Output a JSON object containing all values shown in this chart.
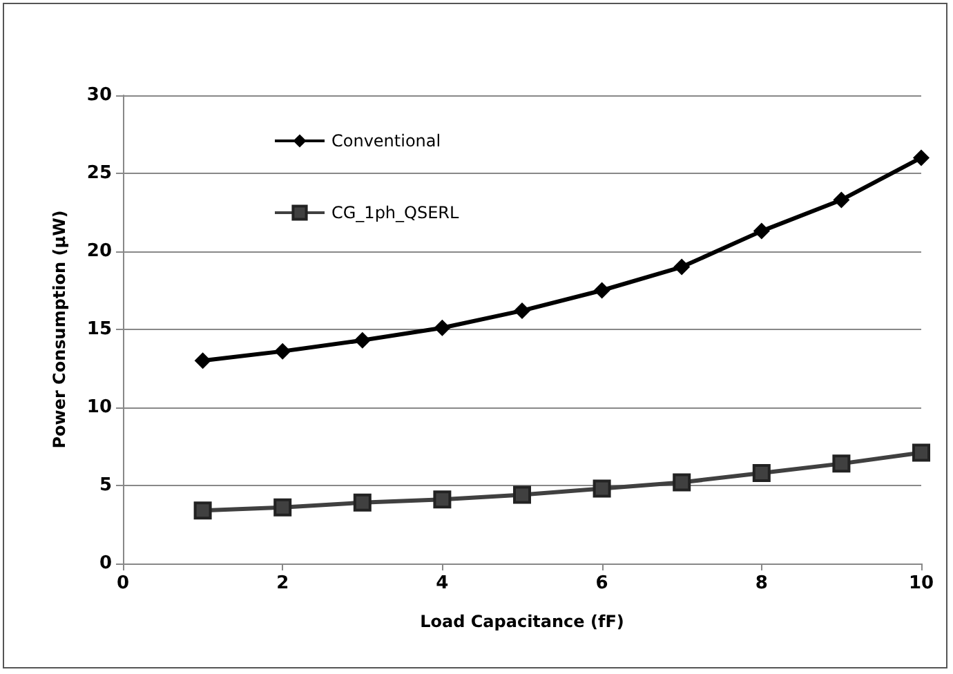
{
  "chart_data": {
    "type": "line",
    "xlabel": "Load Capacitance (fF)",
    "ylabel": "Power Consumption (μW)",
    "x": [
      1,
      2,
      3,
      4,
      5,
      6,
      7,
      8,
      9,
      10
    ],
    "series": [
      {
        "name": "Conventional",
        "color": "#000000",
        "marker": "diamond",
        "values": [
          13.0,
          13.6,
          14.3,
          15.1,
          16.2,
          17.5,
          19.0,
          21.3,
          23.3,
          26.0
        ]
      },
      {
        "name": "CG_1ph_QSERL",
        "color": "#404040",
        "marker": "square",
        "values": [
          3.4,
          3.6,
          3.9,
          4.1,
          4.4,
          4.8,
          5.2,
          5.8,
          6.4,
          7.1
        ]
      }
    ],
    "xlim": [
      0,
      10
    ],
    "xticks": [
      0,
      2,
      4,
      6,
      8,
      10
    ],
    "ylim": [
      0,
      30
    ],
    "yticks": [
      0,
      5,
      10,
      15,
      20,
      25,
      30
    ],
    "grid": "y",
    "legend": "top left",
    "line_style": "solid"
  }
}
